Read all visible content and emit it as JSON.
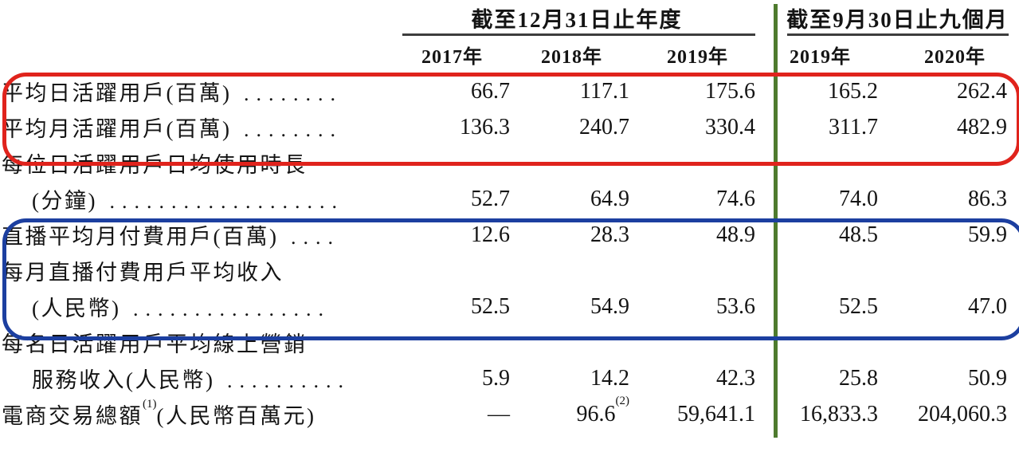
{
  "table": {
    "header": {
      "annual_group": "截至12月31日止年度",
      "nine_month_group": "截至9月30日止九個月",
      "year_columns_annual": [
        "2017年",
        "2018年",
        "2019年"
      ],
      "year_columns_nine_month": [
        "2019年",
        "2020年"
      ]
    },
    "rows": [
      {
        "label": "平均日活躍用戶(百萬)",
        "dots": "........",
        "indent": false,
        "values": [
          "66.7",
          "117.1",
          "175.6",
          "165.2",
          "262.4"
        ]
      },
      {
        "label": "平均月活躍用戶(百萬)",
        "dots": "........",
        "indent": false,
        "values": [
          "136.3",
          "240.7",
          "330.4",
          "311.7",
          "482.9"
        ]
      },
      {
        "label": "每位日活躍用戶日均使用時長",
        "dots": "",
        "indent": false,
        "values": [
          "",
          "",
          "",
          "",
          ""
        ]
      },
      {
        "label": "(分鐘)",
        "dots": "...................",
        "indent": true,
        "values": [
          "52.7",
          "64.9",
          "74.6",
          "74.0",
          "86.3"
        ]
      },
      {
        "label": "直播平均月付費用戶(百萬)",
        "dots": "....",
        "indent": false,
        "values": [
          "12.6",
          "28.3",
          "48.9",
          "48.5",
          "59.9"
        ]
      },
      {
        "label": "每月直播付費用戶平均收入",
        "dots": "",
        "indent": false,
        "values": [
          "",
          "",
          "",
          "",
          ""
        ]
      },
      {
        "label": "(人民幣)",
        "dots": "................",
        "indent": true,
        "values": [
          "52.5",
          "54.9",
          "53.6",
          "52.5",
          "47.0"
        ]
      },
      {
        "label": "每名日活躍用戶平均線上營銷",
        "dots": "",
        "indent": false,
        "values": [
          "",
          "",
          "",
          "",
          ""
        ]
      },
      {
        "label": "服務收入(人民幣)",
        "dots": "..........",
        "indent": true,
        "values": [
          "5.9",
          "14.2",
          "42.3",
          "25.8",
          "50.9"
        ]
      },
      {
        "label": "電商交易總額",
        "label_sup": "(1)",
        "label_suffix": "(人民幣百萬元)",
        "dots": "",
        "indent": false,
        "values": [
          "—",
          "96.6",
          "59,641.1",
          "16,833.3",
          "204,060.3"
        ],
        "value_sups": [
          "",
          "(2)",
          "",
          "",
          ""
        ]
      }
    ]
  },
  "annotations": {
    "red_highlight": {
      "color": "#e0231c",
      "description": "rounded box around average DAU and MAU rows"
    },
    "blue_highlight": {
      "color": "#1c3fa0",
      "description": "rounded box around live streaming paying users rows"
    },
    "green_divider": {
      "color": "#4e7b2e",
      "description": "vertical rule separating annual and nine-month columns"
    },
    "header_rule": {
      "color": "#3d3d3d"
    }
  }
}
